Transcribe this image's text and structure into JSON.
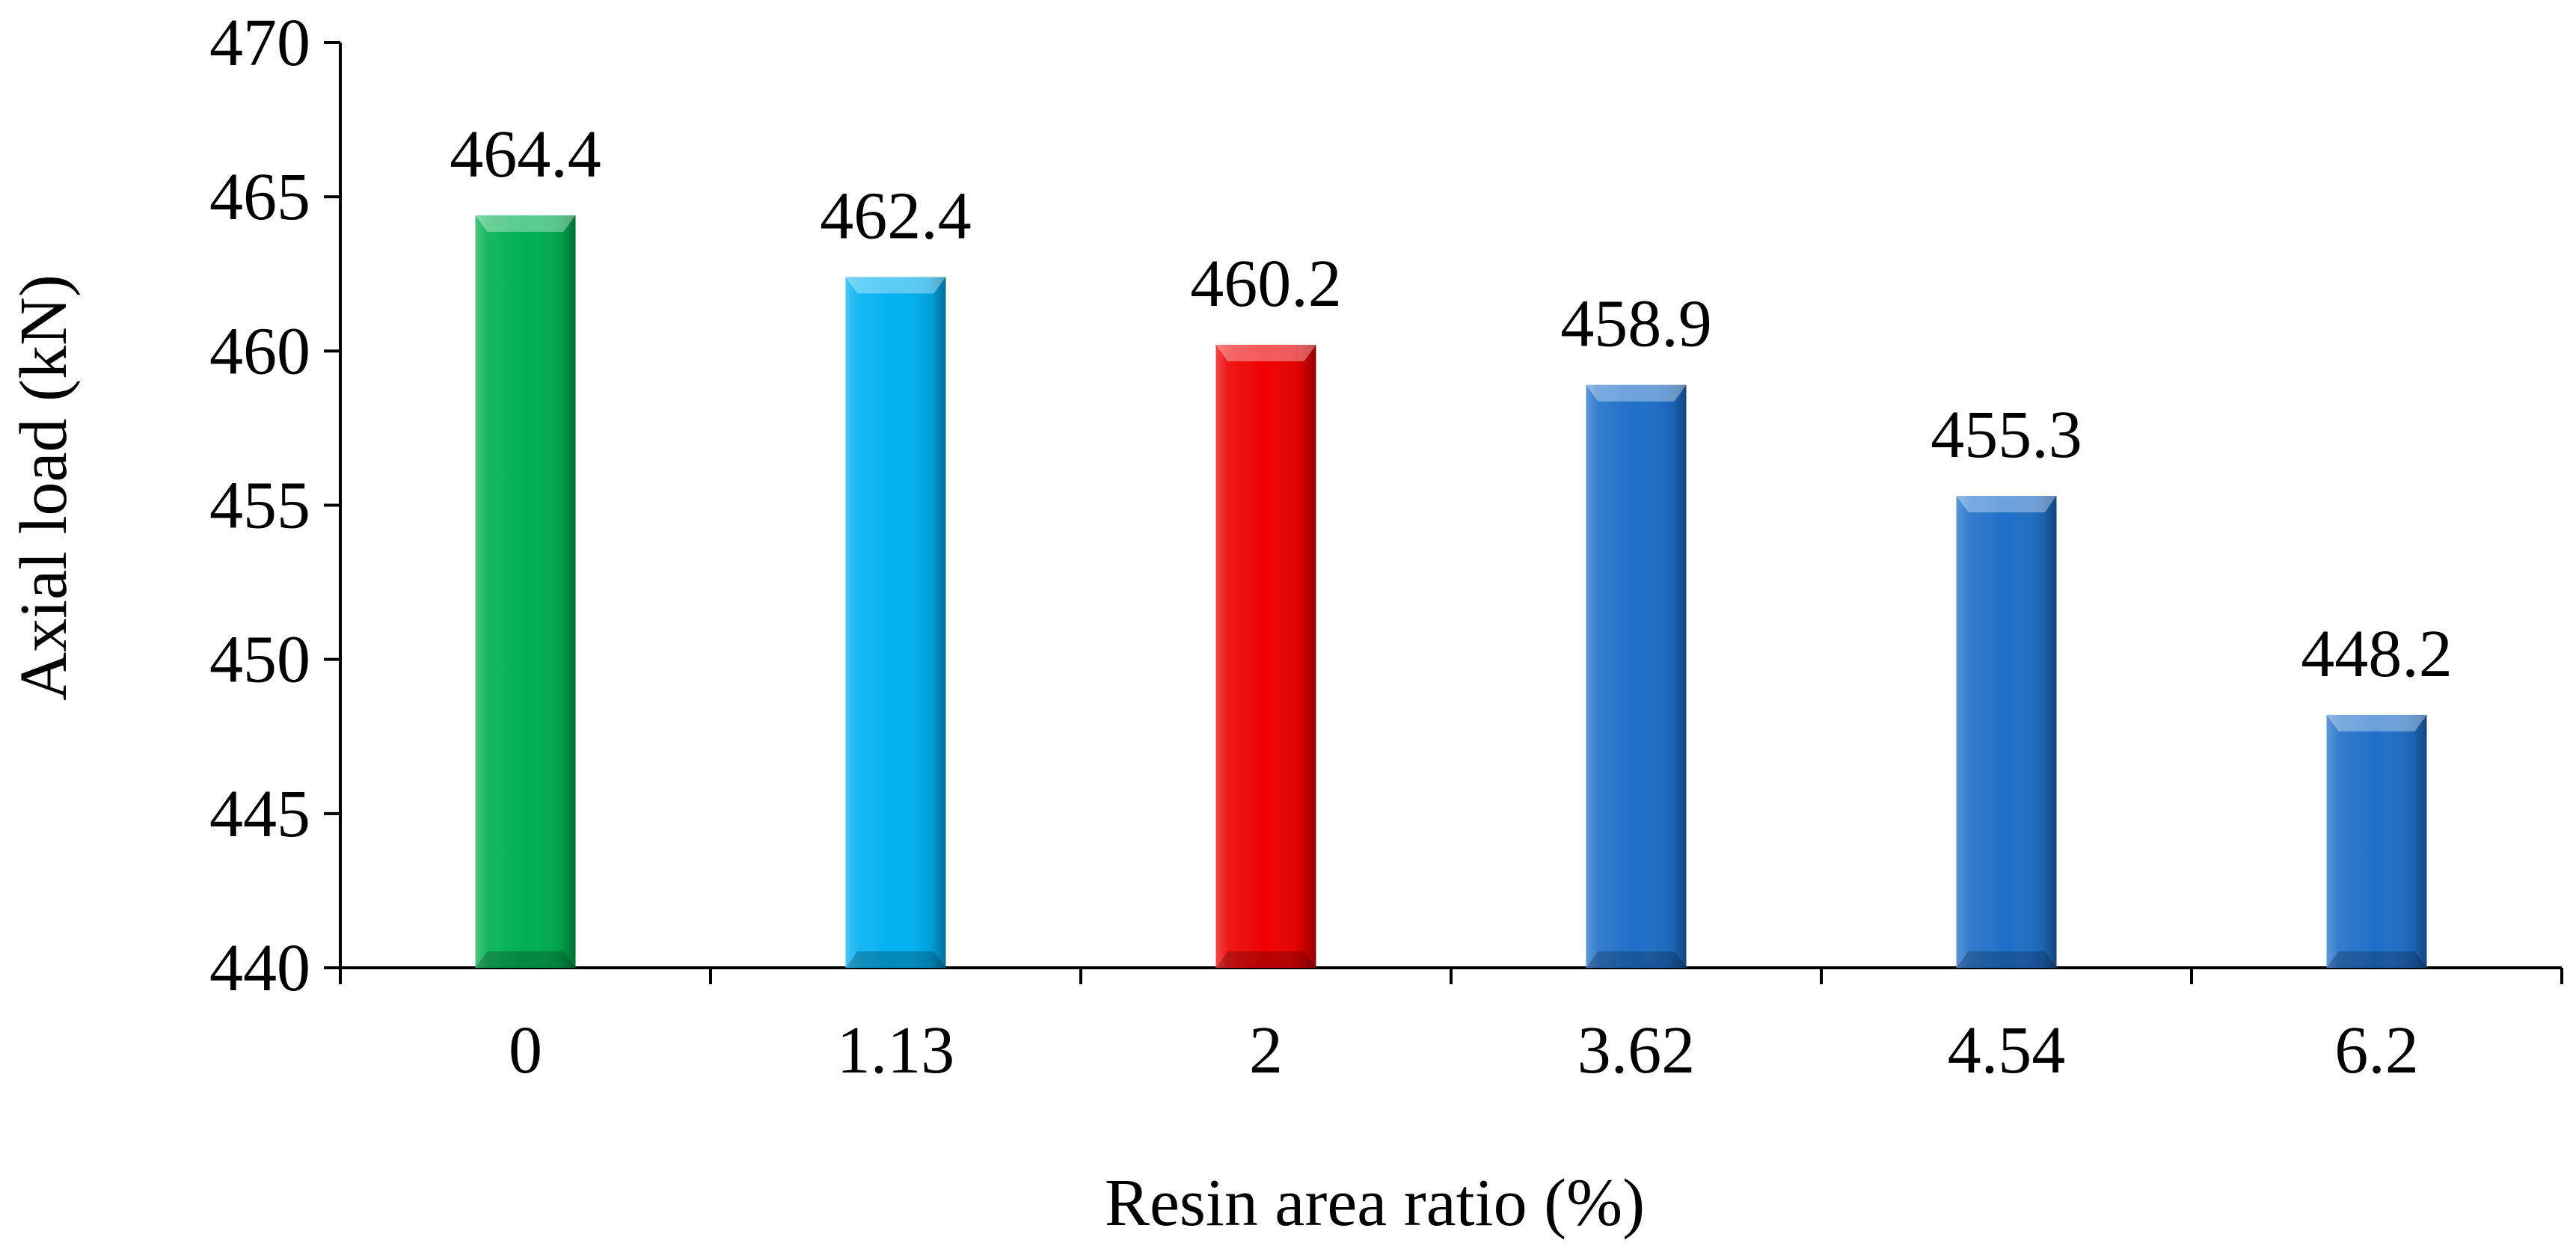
{
  "chart_data": {
    "type": "bar",
    "categories": [
      "0",
      "1.13",
      "2",
      "3.62",
      "4.54",
      "6.2"
    ],
    "values": [
      464.4,
      462.4,
      460.2,
      458.9,
      455.3,
      448.2
    ],
    "value_labels": [
      "464.4",
      "462.4",
      "460.2",
      "458.9",
      "455.3",
      "448.2"
    ],
    "bar_colors": [
      "#00b050",
      "#00b0f0",
      "#ee0000",
      "#1f6fc8",
      "#1f6fc8",
      "#1f6fc8"
    ],
    "xlabel": "Resin area ratio (%)",
    "ylabel": "Axial load (kN)",
    "ylim": [
      440,
      470
    ],
    "yticks": [
      440,
      445,
      450,
      455,
      460,
      465,
      470
    ],
    "grid": false,
    "legend": "none"
  }
}
